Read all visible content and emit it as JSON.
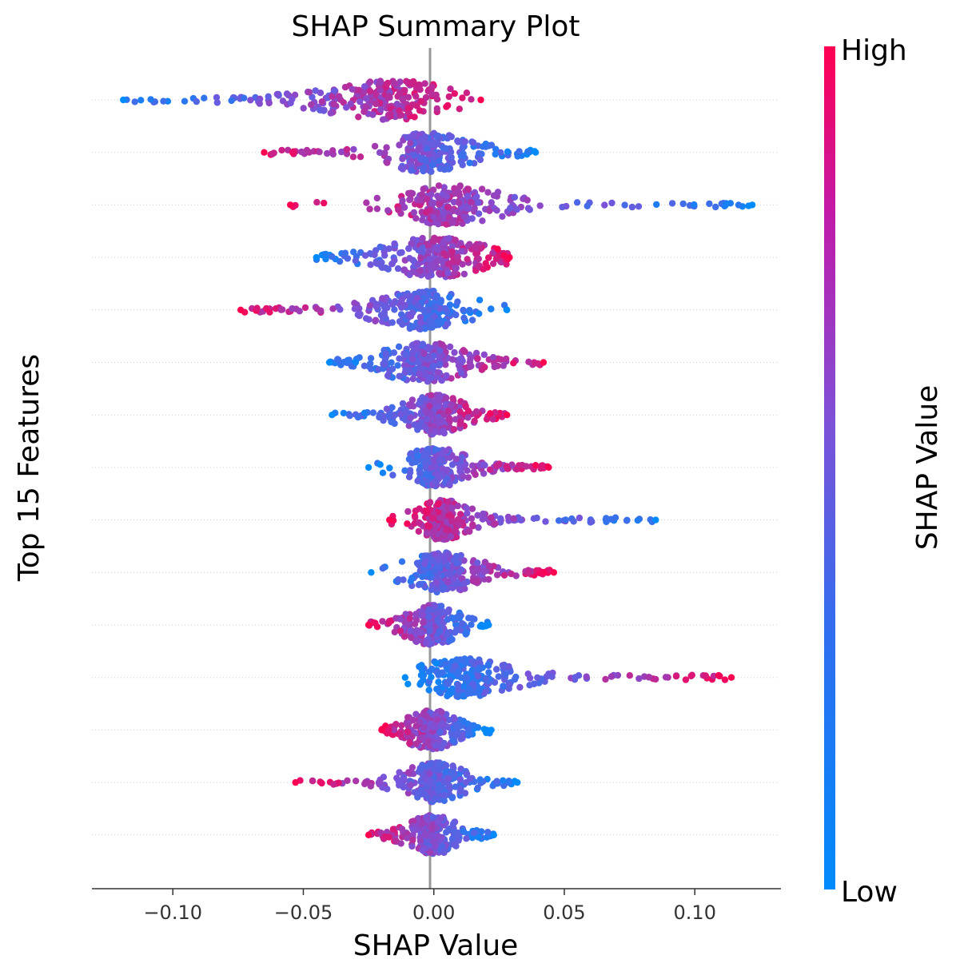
{
  "chart_data": {
    "type": "scatter",
    "subtype": "beeswarm",
    "title": "SHAP Summary Plot",
    "xlabel": "SHAP Value",
    "ylabel": "Top 15 Features",
    "xlim": [
      -0.131,
      0.133
    ],
    "xticks": [
      -0.1,
      -0.05,
      0.0,
      0.05,
      0.1
    ],
    "xtick_labels": [
      "−0.10",
      "−0.05",
      "0.00",
      "0.05",
      "0.10"
    ],
    "zero_line": 0.0,
    "colorbar": {
      "label": "SHAP Value",
      "high_label": "High",
      "low_label": "Low",
      "low_color": "#008bfb",
      "mid_color": "#7c52d8",
      "high_color": "#ff0051"
    },
    "features": [
      {
        "rank": 1,
        "min": -0.119,
        "max": 0.018,
        "core": [
          -0.038,
          0.004
        ],
        "corr": "positive",
        "tail": "left"
      },
      {
        "rank": 2,
        "min": -0.065,
        "max": 0.039,
        "core": [
          -0.017,
          0.011
        ],
        "corr": "negative",
        "tail": "both"
      },
      {
        "rank": 3,
        "min": -0.055,
        "max": 0.122,
        "core": [
          -0.012,
          0.022
        ],
        "corr": "negative",
        "tail": "right"
      },
      {
        "rank": 4,
        "min": -0.045,
        "max": 0.029,
        "core": [
          -0.015,
          0.016
        ],
        "corr": "positive",
        "tail": "both"
      },
      {
        "rank": 5,
        "min": -0.074,
        "max": 0.028,
        "core": [
          -0.018,
          0.011
        ],
        "corr": "negative",
        "tail": "left"
      },
      {
        "rank": 6,
        "min": -0.04,
        "max": 0.042,
        "core": [
          -0.017,
          0.01
        ],
        "corr": "positive",
        "tail": "both"
      },
      {
        "rank": 7,
        "min": -0.039,
        "max": 0.028,
        "core": [
          -0.009,
          0.01
        ],
        "corr": "positive",
        "tail": "both"
      },
      {
        "rank": 8,
        "min": -0.025,
        "max": 0.044,
        "core": [
          -0.009,
          0.01
        ],
        "corr": "positive",
        "tail": "right"
      },
      {
        "rank": 9,
        "min": -0.017,
        "max": 0.085,
        "core": [
          -0.005,
          0.012
        ],
        "corr": "negative",
        "tail": "right"
      },
      {
        "rank": 10,
        "min": -0.024,
        "max": 0.046,
        "core": [
          -0.008,
          0.015
        ],
        "corr": "positive",
        "tail": "right"
      },
      {
        "rank": 11,
        "min": -0.025,
        "max": 0.021,
        "core": [
          -0.009,
          0.008
        ],
        "corr": "negative",
        "tail": "both"
      },
      {
        "rank": 12,
        "min": -0.011,
        "max": 0.114,
        "core": [
          -0.004,
          0.026
        ],
        "corr": "positive",
        "tail": "right"
      },
      {
        "rank": 13,
        "min": -0.02,
        "max": 0.022,
        "core": [
          -0.009,
          0.007
        ],
        "corr": "negative",
        "tail": "both"
      },
      {
        "rank": 14,
        "min": -0.053,
        "max": 0.032,
        "core": [
          -0.009,
          0.01
        ],
        "corr": "negative",
        "tail": "both"
      },
      {
        "rank": 15,
        "min": -0.025,
        "max": 0.023,
        "core": [
          -0.008,
          0.007
        ],
        "corr": "negative",
        "tail": "both"
      }
    ]
  }
}
